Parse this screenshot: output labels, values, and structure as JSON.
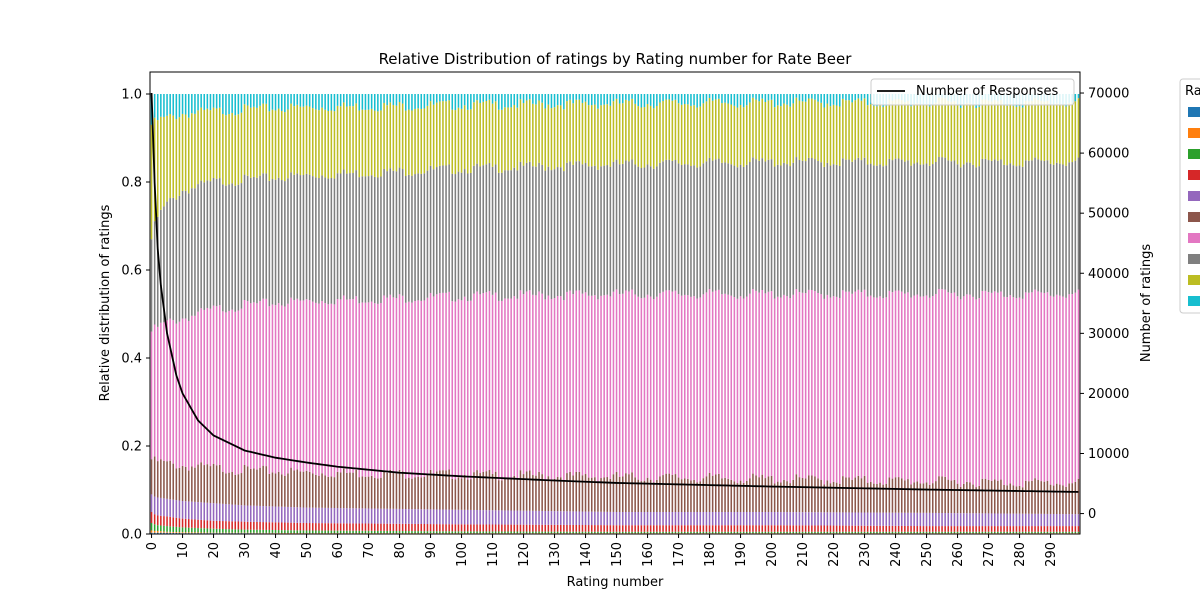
{
  "chart_data": {
    "type": "bar",
    "stacked": true,
    "title": "Relative Distribution of ratings by Rating number for Rate Beer",
    "xlabel": "Rating number",
    "ylabel": "Relative distribution of ratings",
    "y2label": "Number of ratings",
    "xlim": [
      0,
      299
    ],
    "ylim": [
      0,
      1.05
    ],
    "y2lim": [
      -3400,
      73500
    ],
    "yticks": [
      0.0,
      0.2,
      0.4,
      0.6,
      0.8,
      1.0
    ],
    "yticklabels": [
      "0.0",
      "0.2",
      "0.4",
      "0.6",
      "0.8",
      "1.0"
    ],
    "y2ticks": [
      0,
      10000,
      20000,
      30000,
      40000,
      50000,
      60000,
      70000
    ],
    "y2ticklabels": [
      "0",
      "10000",
      "20000",
      "30000",
      "40000",
      "50000",
      "60000",
      "70000"
    ],
    "xticks": [
      0,
      10,
      20,
      30,
      40,
      50,
      60,
      70,
      80,
      90,
      100,
      110,
      120,
      130,
      140,
      150,
      160,
      170,
      180,
      190,
      200,
      210,
      220,
      230,
      240,
      250,
      260,
      270,
      280,
      290
    ],
    "xticklabels": [
      "0",
      "10",
      "20",
      "30",
      "40",
      "50",
      "60",
      "70",
      "80",
      "90",
      "100",
      "110",
      "120",
      "130",
      "140",
      "150",
      "160",
      "170",
      "180",
      "190",
      "200",
      "210",
      "220",
      "230",
      "240",
      "250",
      "260",
      "270",
      "280",
      "290"
    ],
    "legend_line_label": "Number of Responses",
    "legend_line_position": "top-right",
    "legend_stack_title": "Ra",
    "legend_stack_position": "outside right, clipped",
    "grid": false,
    "series_colors": [
      "#1f77b4",
      "#ff7f0e",
      "#2ca02c",
      "#d62728",
      "#9467bd",
      "#8c564b",
      "#e377c2",
      "#7f7f7f",
      "#bcbd22",
      "#17becf"
    ],
    "cumulative_profile": {
      "rating_number": [
        0,
        1,
        2,
        5,
        10,
        20,
        30,
        50,
        100,
        150,
        200,
        250,
        299
      ],
      "cumulative_share_by_category": [
        [
          0.003,
          0.008,
          0.025,
          0.05,
          0.09,
          0.17,
          0.46,
          0.67,
          0.93,
          1.0
        ],
        [
          0.003,
          0.007,
          0.022,
          0.045,
          0.085,
          0.165,
          0.465,
          0.7,
          0.935,
          1.0
        ],
        [
          0.003,
          0.007,
          0.02,
          0.042,
          0.083,
          0.165,
          0.47,
          0.72,
          0.94,
          1.0
        ],
        [
          0.003,
          0.005,
          0.018,
          0.04,
          0.08,
          0.16,
          0.48,
          0.75,
          0.945,
          1.0
        ],
        [
          0.002,
          0.004,
          0.015,
          0.035,
          0.075,
          0.155,
          0.49,
          0.78,
          0.955,
          1.0
        ],
        [
          0.002,
          0.003,
          0.012,
          0.03,
          0.07,
          0.15,
          0.51,
          0.8,
          0.96,
          1.0
        ],
        [
          0.002,
          0.003,
          0.01,
          0.028,
          0.065,
          0.145,
          0.52,
          0.805,
          0.965,
          1.0
        ],
        [
          0.001,
          0.002,
          0.008,
          0.025,
          0.06,
          0.14,
          0.53,
          0.815,
          0.97,
          1.0
        ],
        [
          0.001,
          0.002,
          0.006,
          0.022,
          0.055,
          0.135,
          0.54,
          0.83,
          0.975,
          1.0
        ],
        [
          0.001,
          0.002,
          0.005,
          0.02,
          0.05,
          0.13,
          0.545,
          0.84,
          0.978,
          1.0
        ],
        [
          0.001,
          0.002,
          0.005,
          0.02,
          0.05,
          0.125,
          0.545,
          0.845,
          0.98,
          1.0
        ],
        [
          0.001,
          0.002,
          0.005,
          0.018,
          0.048,
          0.12,
          0.545,
          0.845,
          0.98,
          1.0
        ],
        [
          0.001,
          0.002,
          0.005,
          0.018,
          0.045,
          0.115,
          0.545,
          0.845,
          0.98,
          1.0
        ]
      ]
    },
    "number_of_responses": {
      "rating_number": [
        0,
        1,
        2,
        3,
        5,
        8,
        10,
        15,
        20,
        30,
        40,
        50,
        60,
        80,
        100,
        130,
        150,
        200,
        250,
        299
      ],
      "values": [
        70000,
        55000,
        44000,
        38000,
        30000,
        23000,
        20000,
        15500,
        13000,
        10500,
        9300,
        8500,
        7800,
        6800,
        6200,
        5500,
        5100,
        4500,
        4000,
        3600
      ]
    }
  }
}
